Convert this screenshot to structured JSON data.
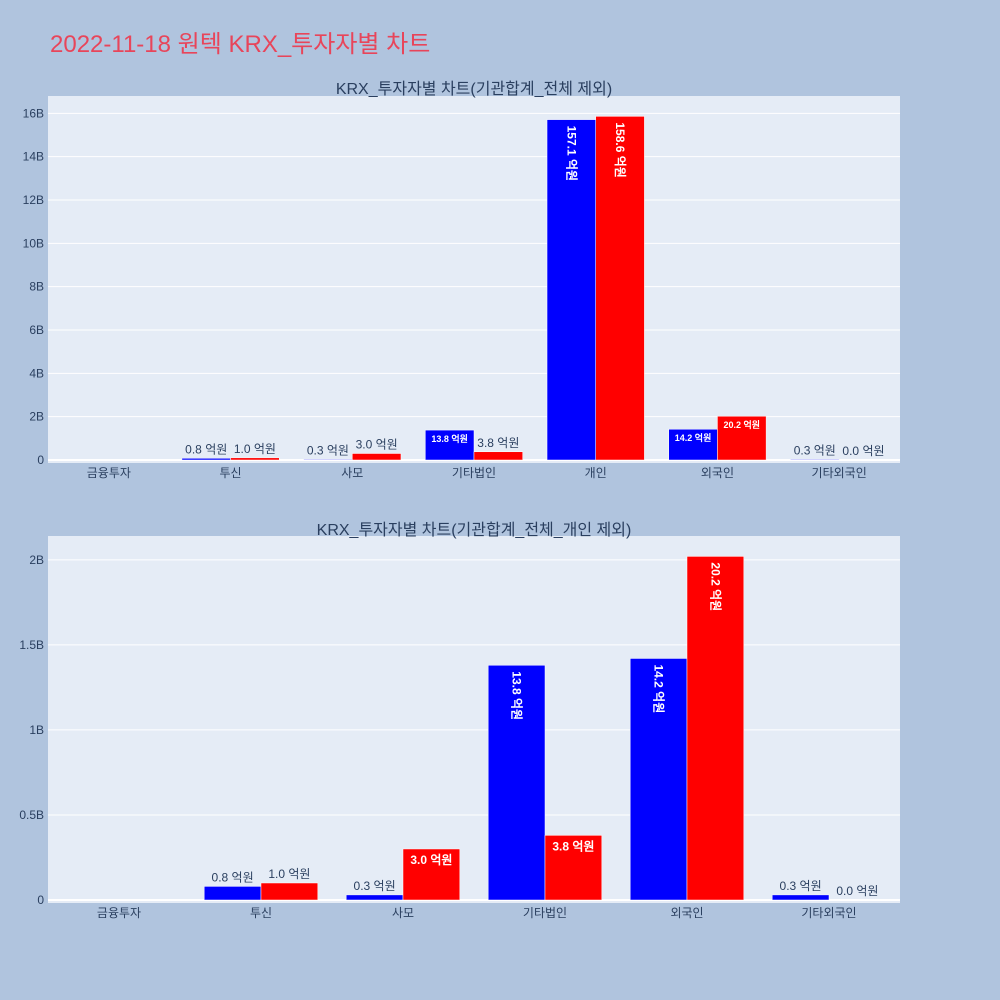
{
  "title": "2022-11-18 원텍 KRX_투자자별 차트",
  "colors": {
    "page_bg": "#b0c4de",
    "plot_bg": "#e5ecf6",
    "title": "#e8455a",
    "series_a": "#0000ff",
    "series_b": "#ff0000"
  },
  "chart_data": [
    {
      "type": "bar",
      "title": "KRX_투자자별 차트(기관합계_전체 제외)",
      "categories": [
        "금융투자",
        "투신",
        "사모",
        "기타법인",
        "개인",
        "외국인",
        "기타외국인"
      ],
      "series": [
        {
          "values": [
            0,
            80000000,
            30000000,
            1380000000,
            15710000000,
            1420000000,
            30000000
          ],
          "labels": [
            "",
            "0.8 억원",
            "0.3 억원",
            "13.8 억원",
            "157.1 억원",
            "14.2 억원",
            "0.3 억원"
          ],
          "label_pos": [
            "none",
            "outside",
            "outside",
            "inside-h",
            "inside-v",
            "inside-h",
            "outside"
          ]
        },
        {
          "values": [
            0,
            100000000,
            300000000,
            380000000,
            15860000000,
            2020000000,
            0
          ],
          "labels": [
            "",
            "1.0 억원",
            "3.0 억원",
            "3.8 억원",
            "158.6 억원",
            "20.2 억원",
            "0.0 억원"
          ],
          "label_pos": [
            "none",
            "outside",
            "outside",
            "outside",
            "inside-v",
            "inside-h",
            "outside"
          ]
        }
      ],
      "yticks": [
        0,
        2000000000,
        4000000000,
        6000000000,
        8000000000,
        10000000000,
        12000000000,
        14000000000,
        16000000000
      ],
      "ytick_labels": [
        "0",
        "2B",
        "4B",
        "6B",
        "8B",
        "10B",
        "12B",
        "14B",
        "16B"
      ],
      "ylim": [
        0,
        16800000000
      ],
      "grid": true
    },
    {
      "type": "bar",
      "title": "KRX_투자자별 차트(기관합계_전체_개인 제외)",
      "categories": [
        "금융투자",
        "투신",
        "사모",
        "기타법인",
        "외국인",
        "기타외국인"
      ],
      "series": [
        {
          "values": [
            0,
            80000000,
            30000000,
            1380000000,
            1420000000,
            30000000
          ],
          "labels": [
            "",
            "0.8 억원",
            "0.3 억원",
            "13.8 억원",
            "14.2 억원",
            "0.3 억원"
          ],
          "label_pos": [
            "none",
            "outside",
            "outside",
            "inside-v",
            "inside-v",
            "outside"
          ]
        },
        {
          "values": [
            0,
            100000000,
            300000000,
            380000000,
            2020000000,
            0
          ],
          "labels": [
            "",
            "1.0 억원",
            "3.0 억원",
            "3.8 억원",
            "20.2 억원",
            "0.0 억원"
          ],
          "label_pos": [
            "none",
            "outside",
            "inside-h",
            "inside-h",
            "inside-v",
            "outside"
          ]
        }
      ],
      "yticks": [
        0,
        500000000,
        1000000000,
        1500000000,
        2000000000
      ],
      "ytick_labels": [
        "0",
        "0.5B",
        "1B",
        "1.5B",
        "2B"
      ],
      "ylim": [
        0,
        2140000000
      ],
      "grid": true
    }
  ]
}
